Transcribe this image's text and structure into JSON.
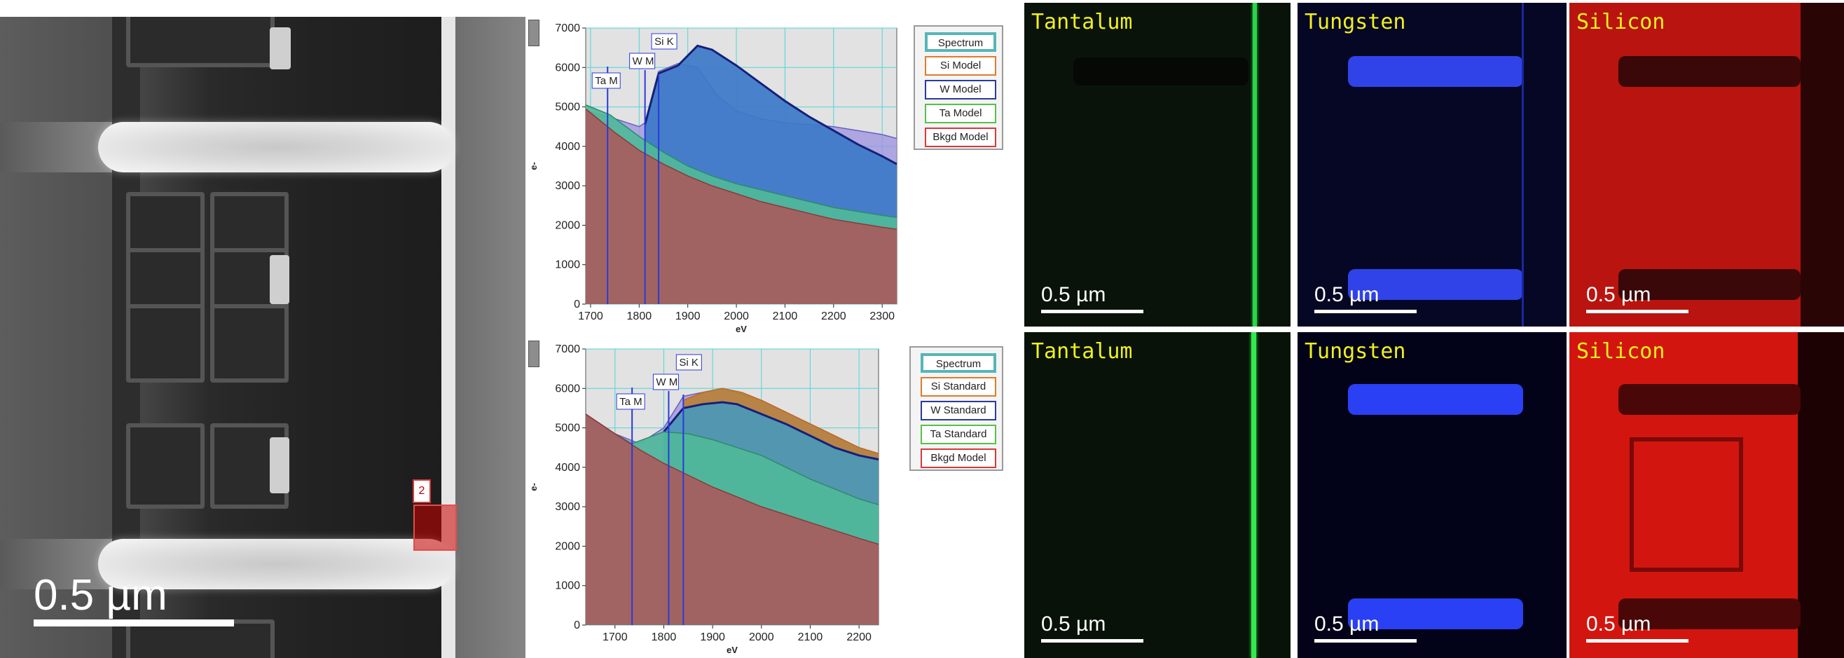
{
  "sem_image": {
    "roi_label": "2",
    "scale_bar": "0.5 µm"
  },
  "charts": {
    "top": {
      "legend": [
        {
          "label": "Spectrum",
          "color": "#57b5b8"
        },
        {
          "label": "Si Model",
          "color": "#e07b2a"
        },
        {
          "label": "W Model",
          "color": "#2b3a9a"
        },
        {
          "label": "Ta Model",
          "color": "#57c04a"
        },
        {
          "label": "Bkgd Model",
          "color": "#d63a3a"
        }
      ],
      "peak_labels": [
        "Ta M",
        "W M",
        "Si K"
      ],
      "y_axis_label": "e-",
      "x_axis_label": "eV"
    },
    "bottom": {
      "legend": [
        {
          "label": "Spectrum",
          "color": "#57b5b8"
        },
        {
          "label": "Si Standard",
          "color": "#e07b2a"
        },
        {
          "label": "W Standard",
          "color": "#2b3a9a"
        },
        {
          "label": "Ta Standard",
          "color": "#57c04a"
        },
        {
          "label": "Bkgd Model",
          "color": "#d63a3a"
        }
      ],
      "peak_labels": [
        "Ta M",
        "W M",
        "Si K"
      ],
      "y_axis_label": "e-",
      "x_axis_label": "eV"
    }
  },
  "chart_data": [
    {
      "type": "area",
      "x_label": "eV",
      "y_label": "e-",
      "xlim": [
        1690,
        2330
      ],
      "ylim": [
        0,
        7000
      ],
      "x_ticks": [
        1700,
        1800,
        1900,
        2000,
        2100,
        2200,
        2300
      ],
      "y_ticks": [
        0,
        1000,
        2000,
        3000,
        4000,
        5000,
        6000,
        7000
      ],
      "grid": true,
      "legend": [
        "Spectrum",
        "Si Model",
        "W Model",
        "Ta Model",
        "Bkgd Model"
      ],
      "peak_markers": [
        {
          "label": "Ta M",
          "x": 1735
        },
        {
          "label": "W M",
          "x": 1812
        },
        {
          "label": "Si K",
          "x": 1840
        }
      ],
      "series": [
        {
          "name": "Bkgd Model",
          "x": [
            1690,
            1750,
            1800,
            1850,
            1900,
            1950,
            2000,
            2050,
            2100,
            2150,
            2200,
            2250,
            2300,
            2330
          ],
          "y": [
            4950,
            4350,
            3900,
            3550,
            3250,
            3000,
            2800,
            2600,
            2450,
            2300,
            2150,
            2050,
            1950,
            1900
          ]
        },
        {
          "name": "Ta Model",
          "x": [
            1690,
            1740,
            1800,
            1850,
            1900,
            1950,
            2000,
            2050,
            2100,
            2150,
            2200,
            2250,
            2300,
            2330
          ],
          "y": [
            5050,
            4800,
            4250,
            3850,
            3500,
            3250,
            3050,
            2900,
            2750,
            2600,
            2450,
            2350,
            2250,
            2200
          ]
        },
        {
          "name": "W Model",
          "x": [
            1812,
            1840,
            1880,
            1920,
            1950,
            2000,
            2050,
            2100,
            2150,
            2200,
            2250,
            2300,
            2330
          ],
          "y": [
            4550,
            5850,
            6050,
            6550,
            6450,
            6050,
            5600,
            5150,
            4750,
            4400,
            4050,
            3750,
            3550
          ]
        },
        {
          "name": "Spectrum",
          "x": [
            1690,
            1750,
            1800,
            1812,
            1840,
            1880,
            1920,
            1960,
            2000,
            2050,
            2100,
            2150,
            2200,
            2250,
            2300,
            2330
          ],
          "y": [
            4900,
            4700,
            4500,
            4600,
            5900,
            6100,
            6000,
            5300,
            4900,
            4700,
            4600,
            4550,
            4500,
            4400,
            4300,
            4200
          ]
        }
      ]
    },
    {
      "type": "area",
      "x_label": "eV",
      "y_label": "e-",
      "xlim": [
        1640,
        2240
      ],
      "ylim": [
        0,
        7000
      ],
      "x_ticks": [
        1700,
        1800,
        1900,
        2000,
        2100,
        2200
      ],
      "y_ticks": [
        0,
        1000,
        2000,
        3000,
        4000,
        5000,
        6000,
        7000
      ],
      "grid": true,
      "legend": [
        "Spectrum",
        "Si Standard",
        "W Standard",
        "Ta Standard",
        "Bkgd Model"
      ],
      "peak_markers": [
        {
          "label": "Ta M",
          "x": 1735
        },
        {
          "label": "W M",
          "x": 1810
        },
        {
          "label": "Si K",
          "x": 1840
        }
      ],
      "series": [
        {
          "name": "Bkgd Model",
          "x": [
            1640,
            1700,
            1750,
            1800,
            1850,
            1900,
            1950,
            2000,
            2050,
            2100,
            2150,
            2200,
            2240
          ],
          "y": [
            5350,
            4850,
            4450,
            4100,
            3800,
            3500,
            3250,
            3000,
            2800,
            2600,
            2400,
            2200,
            2050
          ]
        },
        {
          "name": "Ta Standard",
          "x": [
            1640,
            1700,
            1735,
            1800,
            1850,
            1900,
            1950,
            2000,
            2050,
            2100,
            2150,
            2200,
            2240
          ],
          "y": [
            5350,
            4850,
            4600,
            4900,
            4850,
            4700,
            4500,
            4300,
            4000,
            3700,
            3450,
            3200,
            3050
          ]
        },
        {
          "name": "W Standard",
          "x": [
            1800,
            1840,
            1880,
            1920,
            1950,
            2000,
            2050,
            2100,
            2150,
            2200,
            2240
          ],
          "y": [
            4900,
            5500,
            5600,
            5650,
            5600,
            5350,
            5100,
            4800,
            4500,
            4300,
            4200
          ]
        },
        {
          "name": "Si Standard",
          "x": [
            1840,
            1880,
            1920,
            1960,
            2000,
            2050,
            2100,
            2150,
            2200,
            2240
          ],
          "y": [
            5700,
            5900,
            6000,
            5900,
            5700,
            5400,
            5100,
            4800,
            4500,
            4350
          ]
        },
        {
          "name": "Spectrum",
          "x": [
            1640,
            1700,
            1750,
            1800,
            1840,
            1880,
            1920,
            1960,
            2000,
            2050,
            2100,
            2150,
            2200,
            2240
          ],
          "y": [
            5300,
            4850,
            4600,
            5000,
            5800,
            5900,
            6000,
            5850,
            5700,
            5400,
            5100,
            4800,
            4500,
            4350
          ]
        }
      ]
    }
  ],
  "element_maps": {
    "top_row": [
      {
        "title": "Tantalum",
        "scale_bar": "0.5 µm",
        "color": "#22c83a"
      },
      {
        "title": "Tungsten",
        "scale_bar": "0.5 µm",
        "color": "#3344ff"
      },
      {
        "title": "Silicon",
        "scale_bar": "0.5 µm",
        "color": "#e0201f"
      }
    ],
    "bottom_row": [
      {
        "title": "Tantalum",
        "scale_bar": "0.5 µm",
        "color": "#22c83a"
      },
      {
        "title": "Tungsten",
        "scale_bar": "0.5 µm",
        "color": "#3344ff"
      },
      {
        "title": "Silicon",
        "scale_bar": "0.5 µm",
        "color": "#e0201f"
      }
    ]
  }
}
